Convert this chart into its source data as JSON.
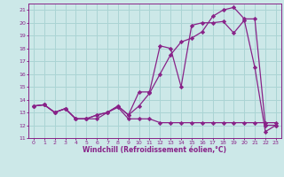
{
  "xlabel": "Windchill (Refroidissement éolien,°C)",
  "bg_color": "#cce8e8",
  "grid_color": "#aad4d4",
  "line_color": "#882288",
  "xlim": [
    -0.5,
    23.5
  ],
  "ylim": [
    11,
    21.5
  ],
  "xticks": [
    0,
    1,
    2,
    3,
    4,
    5,
    6,
    7,
    8,
    9,
    10,
    11,
    12,
    13,
    14,
    15,
    16,
    17,
    18,
    19,
    20,
    21,
    22,
    23
  ],
  "yticks": [
    11,
    12,
    13,
    14,
    15,
    16,
    17,
    18,
    19,
    20,
    21
  ],
  "series1_x": [
    0,
    1,
    2,
    3,
    4,
    5,
    6,
    7,
    8,
    9,
    10,
    11,
    12,
    13,
    14,
    15,
    16,
    17,
    18,
    19,
    20,
    21,
    22,
    23
  ],
  "series1_y": [
    13.5,
    13.6,
    13.0,
    13.3,
    12.5,
    12.5,
    12.5,
    13.0,
    13.4,
    12.5,
    12.5,
    12.5,
    12.2,
    12.2,
    12.2,
    12.2,
    12.2,
    12.2,
    12.2,
    12.2,
    12.2,
    12.2,
    12.2,
    12.2
  ],
  "series2_x": [
    0,
    1,
    2,
    3,
    4,
    5,
    6,
    7,
    8,
    9,
    10,
    11,
    12,
    13,
    14,
    15,
    16,
    17,
    18,
    19,
    20,
    21,
    22,
    23
  ],
  "series2_y": [
    13.5,
    13.6,
    13.0,
    13.3,
    12.5,
    12.5,
    12.8,
    13.0,
    13.5,
    12.8,
    14.6,
    14.6,
    18.2,
    18.0,
    15.0,
    19.8,
    20.0,
    20.0,
    20.1,
    19.2,
    20.2,
    16.5,
    11.5,
    12.0
  ],
  "series3_x": [
    0,
    1,
    2,
    3,
    4,
    5,
    6,
    7,
    8,
    9,
    10,
    11,
    12,
    13,
    14,
    15,
    16,
    17,
    18,
    19,
    20,
    21,
    22,
    23
  ],
  "series3_y": [
    13.5,
    13.6,
    13.0,
    13.3,
    12.5,
    12.5,
    12.8,
    13.0,
    13.5,
    12.8,
    13.5,
    14.5,
    16.0,
    17.5,
    18.5,
    18.8,
    19.3,
    20.5,
    21.0,
    21.2,
    20.3,
    20.3,
    12.0,
    12.0
  ]
}
